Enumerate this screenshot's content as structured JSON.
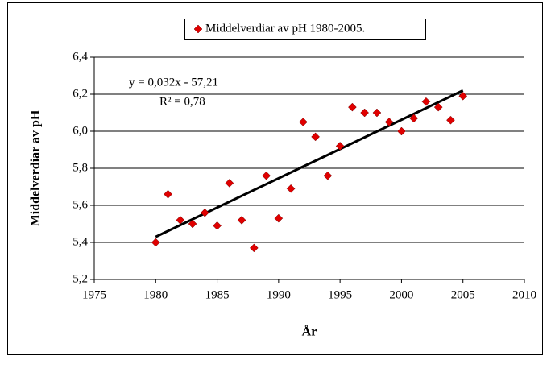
{
  "chart_data": {
    "type": "scatter",
    "x_label": "År",
    "y_label": "Middelverdiar av pH",
    "series": [
      {
        "name": "Middelverdiar av pH 1980-2005.",
        "color": "#e00000",
        "x": [
          1980,
          1981,
          1982,
          1983,
          1984,
          1985,
          1986,
          1987,
          1988,
          1989,
          1990,
          1991,
          1992,
          1993,
          1994,
          1995,
          1996,
          1997,
          1998,
          1999,
          2000,
          2001,
          2002,
          2003,
          2004,
          2005
        ],
        "values": [
          5.4,
          5.66,
          5.52,
          5.5,
          5.56,
          5.49,
          5.72,
          5.52,
          5.37,
          5.76,
          5.53,
          5.69,
          6.05,
          5.97,
          5.76,
          5.92,
          6.13,
          6.1,
          6.1,
          6.05,
          6.0,
          6.07,
          6.16,
          6.13,
          6.06,
          6.19
        ]
      }
    ],
    "trendline": {
      "color": "#000000",
      "x": [
        1980,
        2005
      ],
      "values": [
        5.43,
        6.22
      ],
      "equation": "y = 0,032x - 57,21",
      "r_squared": "R² = 0,78"
    },
    "xlim": [
      1975,
      2010
    ],
    "xticks": [
      1975,
      1980,
      1985,
      1990,
      1995,
      2000,
      2005,
      2010
    ],
    "ylim": [
      5.2,
      6.4
    ],
    "yticks": [
      {
        "value": 5.2,
        "label": "5,2"
      },
      {
        "value": 5.4,
        "label": "5,4"
      },
      {
        "value": 5.6,
        "label": "5,6"
      },
      {
        "value": 5.8,
        "label": "5,8"
      },
      {
        "value": 6.0,
        "label": "6,0"
      },
      {
        "value": 6.2,
        "label": "6,2"
      },
      {
        "value": 6.4,
        "label": "6,4"
      }
    ],
    "grid": true,
    "legend": "top"
  }
}
